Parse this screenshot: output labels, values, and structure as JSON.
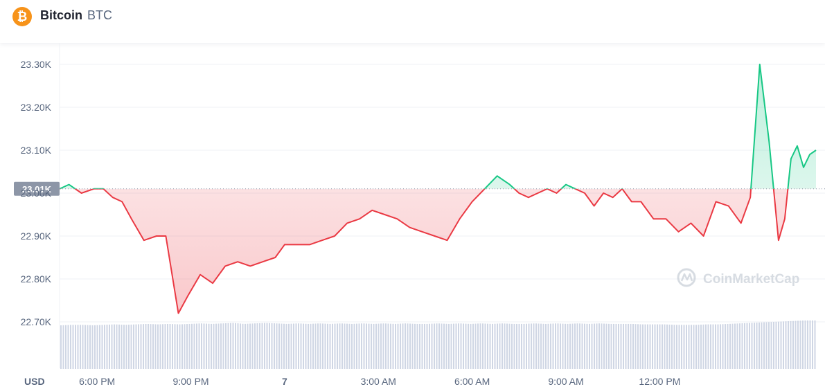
{
  "header": {
    "coin_name": "Bitcoin",
    "coin_symbol": "BTC",
    "logo_glyph": "₿"
  },
  "watermark": "CoinMarketCap",
  "currency_label": "USD",
  "colors": {
    "up": "#16c784",
    "down": "#ea3943",
    "bitcoin": "#f7931a",
    "grid": "#eff2f5"
  },
  "chart_data": {
    "type": "area",
    "reference_value": 23010,
    "reference_label": "23.01K",
    "ylim": [
      22700,
      23300
    ],
    "yticks": [
      22700,
      22800,
      22900,
      23000,
      23100,
      23200,
      23300
    ],
    "ytick_labels": [
      "22.70K",
      "22.80K",
      "22.90K",
      "23.00K",
      "23.10K",
      "23.20K",
      "23.30K"
    ],
    "xlim": [
      16.8,
      41.0
    ],
    "xticks": [
      18,
      21,
      24,
      27,
      30,
      33,
      36
    ],
    "xtick_labels": [
      "6:00 PM",
      "9:00 PM",
      "7",
      "3:00 AM",
      "6:00 AM",
      "9:00 AM",
      "12:00 PM"
    ],
    "x": [
      16.8,
      17.1,
      17.5,
      17.9,
      18.2,
      18.5,
      18.8,
      19.1,
      19.5,
      19.9,
      20.2,
      20.6,
      20.9,
      21.3,
      21.7,
      22.1,
      22.5,
      22.9,
      23.3,
      23.7,
      24.0,
      24.4,
      24.8,
      25.2,
      25.6,
      26.0,
      26.4,
      26.8,
      27.2,
      27.6,
      28.0,
      28.4,
      28.8,
      29.2,
      29.6,
      30.0,
      30.4,
      30.8,
      31.2,
      31.5,
      31.8,
      32.1,
      32.4,
      32.7,
      33.0,
      33.3,
      33.6,
      33.9,
      34.2,
      34.5,
      34.8,
      35.1,
      35.4,
      35.8,
      36.2,
      36.6,
      37.0,
      37.4,
      37.8,
      38.2,
      38.6,
      38.9,
      39.2,
      39.5,
      39.8,
      40.0,
      40.2,
      40.4,
      40.6,
      40.8,
      41.0
    ],
    "y": [
      23010,
      23020,
      23000,
      23010,
      23010,
      22990,
      22980,
      22940,
      22890,
      22900,
      22900,
      22720,
      22760,
      22810,
      22790,
      22830,
      22840,
      22830,
      22840,
      22850,
      22880,
      22880,
      22880,
      22890,
      22900,
      22930,
      22940,
      22960,
      22950,
      22940,
      22920,
      22910,
      22900,
      22890,
      22940,
      22980,
      23010,
      23040,
      23020,
      23000,
      22990,
      23000,
      23010,
      23000,
      23020,
      23010,
      23000,
      22970,
      23000,
      22990,
      23010,
      22980,
      22980,
      22940,
      22940,
      22910,
      22930,
      22900,
      22980,
      22970,
      22930,
      22990,
      23300,
      23120,
      22890,
      22940,
      23080,
      23110,
      23060,
      23090,
      23100
    ],
    "volume_relative": [
      0.9,
      0.91,
      0.91,
      0.9,
      0.91,
      0.92,
      0.91,
      0.92,
      0.93,
      0.92,
      0.93,
      0.92,
      0.93,
      0.94,
      0.93,
      0.94,
      0.95,
      0.93,
      0.94,
      0.95,
      0.94,
      0.93,
      0.94,
      0.93,
      0.94,
      0.93,
      0.94,
      0.93,
      0.94,
      0.93,
      0.94,
      0.93,
      0.94,
      0.93,
      0.93,
      0.94,
      0.93,
      0.94,
      0.93,
      0.94,
      0.93,
      0.94,
      0.93,
      0.93,
      0.94,
      0.93,
      0.94,
      0.93,
      0.94,
      0.93,
      0.94,
      0.93,
      0.93,
      0.93,
      0.92,
      0.92,
      0.92,
      0.91,
      0.91,
      0.91,
      0.92,
      0.92,
      0.93,
      0.94,
      0.95,
      0.96,
      0.97,
      0.98,
      0.99,
      1.0,
      1.0
    ]
  }
}
